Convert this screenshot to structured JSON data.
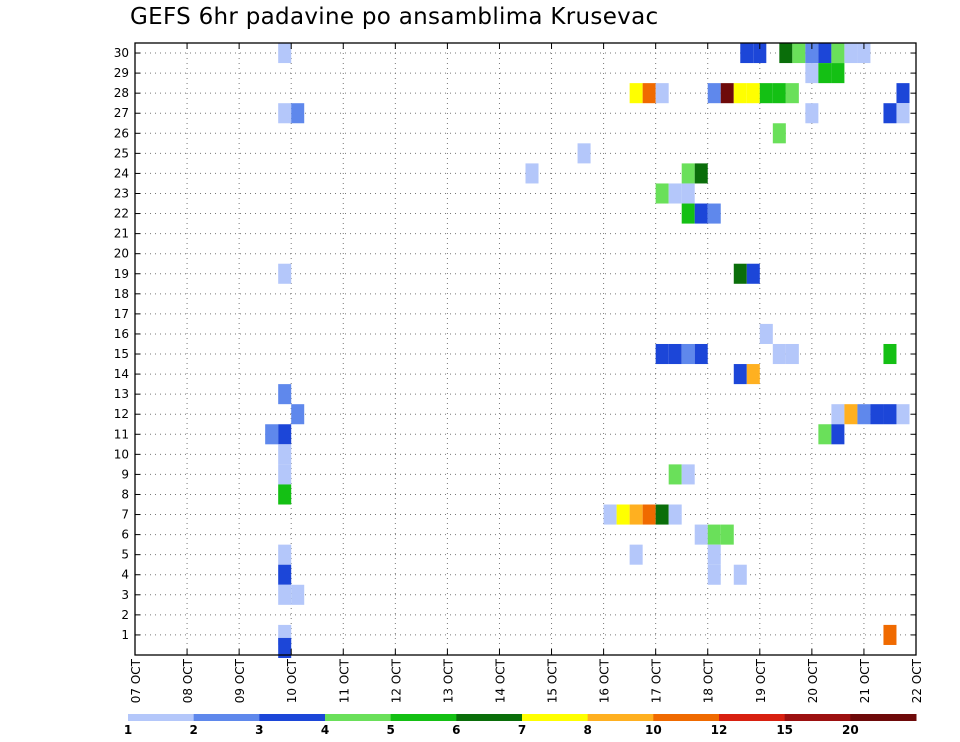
{
  "chart_data": {
    "type": "heatmap",
    "title": "GEFS 6hr padavine po ansamblima Krusevac",
    "xlabel": "",
    "ylabel": "",
    "x_tick_labels": [
      "07 OCT",
      "08 OCT",
      "09 OCT",
      "10 OCT",
      "11 OCT",
      "12 OCT",
      "13 OCT",
      "14 OCT",
      "15 OCT",
      "16 OCT",
      "17 OCT",
      "18 OCT",
      "19 OCT",
      "20 OCT",
      "21 OCT",
      "22 OCT"
    ],
    "y_tick_labels": [
      "1",
      "2",
      "3",
      "4",
      "5",
      "6",
      "7",
      "8",
      "9",
      "10",
      "11",
      "12",
      "13",
      "14",
      "15",
      "16",
      "17",
      "18",
      "19",
      "20",
      "21",
      "22",
      "23",
      "24",
      "25",
      "26",
      "27",
      "28",
      "29",
      "30"
    ],
    "xlim": [
      0,
      60
    ],
    "ylim": [
      0,
      30.5
    ],
    "grid": true,
    "time_step": "6hr",
    "colorbar": {
      "labels": [
        "1",
        "2",
        "3",
        "4",
        "5",
        "6",
        "7",
        "8",
        "10",
        "12",
        "15",
        "20"
      ],
      "colors": [
        "#b4c7fa",
        "#5f88ec",
        "#1c46d8",
        "#6ae05a",
        "#14c014",
        "#0a6e0a",
        "#ffff00",
        "#ffb020",
        "#f06a00",
        "#d82010",
        "#9c1010",
        "#6e0a0a"
      ]
    },
    "cells": [
      {
        "member": 30,
        "step": 11.5,
        "value": 1
      },
      {
        "member": 30,
        "step": 47,
        "value": 3
      },
      {
        "member": 30,
        "step": 48,
        "value": 3
      },
      {
        "member": 30,
        "step": 50,
        "value": 6
      },
      {
        "member": 30,
        "step": 51,
        "value": 4
      },
      {
        "member": 30,
        "step": 52,
        "value": 2
      },
      {
        "member": 30,
        "step": 53,
        "value": 3
      },
      {
        "member": 30,
        "step": 54,
        "value": 4
      },
      {
        "member": 30,
        "step": 55,
        "value": 1
      },
      {
        "member": 30,
        "step": 56,
        "value": 1
      },
      {
        "member": 29,
        "step": 52,
        "value": 1
      },
      {
        "member": 29,
        "step": 53,
        "value": 5
      },
      {
        "member": 29,
        "step": 54,
        "value": 5
      },
      {
        "member": 28,
        "step": 38.5,
        "value": 7
      },
      {
        "member": 28,
        "step": 39.5,
        "value": 10
      },
      {
        "member": 28,
        "step": 40.5,
        "value": 1
      },
      {
        "member": 28,
        "step": 44.5,
        "value": 2
      },
      {
        "member": 28,
        "step": 45.5,
        "value": 20
      },
      {
        "member": 28,
        "step": 46.5,
        "value": 7
      },
      {
        "member": 28,
        "step": 47.5,
        "value": 7
      },
      {
        "member": 28,
        "step": 48.5,
        "value": 5
      },
      {
        "member": 28,
        "step": 49.5,
        "value": 5
      },
      {
        "member": 28,
        "step": 50.5,
        "value": 4
      },
      {
        "member": 28,
        "step": 59,
        "value": 3
      },
      {
        "member": 27,
        "step": 11.5,
        "value": 1
      },
      {
        "member": 27,
        "step": 12.5,
        "value": 2
      },
      {
        "member": 27,
        "step": 52,
        "value": 1
      },
      {
        "member": 27,
        "step": 58,
        "value": 3
      },
      {
        "member": 27,
        "step": 59,
        "value": 1
      },
      {
        "member": 26,
        "step": 49.5,
        "value": 4
      },
      {
        "member": 25,
        "step": 34.5,
        "value": 1
      },
      {
        "member": 24,
        "step": 30.5,
        "value": 1
      },
      {
        "member": 24,
        "step": 42.5,
        "value": 4
      },
      {
        "member": 24,
        "step": 43.5,
        "value": 6
      },
      {
        "member": 23,
        "step": 40.5,
        "value": 4
      },
      {
        "member": 23,
        "step": 41.5,
        "value": 1
      },
      {
        "member": 23,
        "step": 42.5,
        "value": 1
      },
      {
        "member": 22,
        "step": 42.5,
        "value": 5
      },
      {
        "member": 22,
        "step": 43.5,
        "value": 3
      },
      {
        "member": 22,
        "step": 44.5,
        "value": 2
      },
      {
        "member": 19,
        "step": 11.5,
        "value": 1
      },
      {
        "member": 19,
        "step": 46.5,
        "value": 6
      },
      {
        "member": 19,
        "step": 47.5,
        "value": 3
      },
      {
        "member": 16,
        "step": 48.5,
        "value": 1
      },
      {
        "member": 15,
        "step": 40.5,
        "value": 3
      },
      {
        "member": 15,
        "step": 41.5,
        "value": 3
      },
      {
        "member": 15,
        "step": 42.5,
        "value": 2
      },
      {
        "member": 15,
        "step": 43.5,
        "value": 3
      },
      {
        "member": 15,
        "step": 49.5,
        "value": 1
      },
      {
        "member": 15,
        "step": 50.5,
        "value": 1
      },
      {
        "member": 15,
        "step": 58,
        "value": 5
      },
      {
        "member": 14,
        "step": 46.5,
        "value": 3
      },
      {
        "member": 14,
        "step": 47.5,
        "value": 8
      },
      {
        "member": 13,
        "step": 11.5,
        "value": 2
      },
      {
        "member": 12,
        "step": 12.5,
        "value": 2
      },
      {
        "member": 12,
        "step": 54,
        "value": 1
      },
      {
        "member": 12,
        "step": 55,
        "value": 8
      },
      {
        "member": 12,
        "step": 56,
        "value": 2
      },
      {
        "member": 12,
        "step": 57,
        "value": 3
      },
      {
        "member": 12,
        "step": 58,
        "value": 3
      },
      {
        "member": 12,
        "step": 59,
        "value": 1
      },
      {
        "member": 11,
        "step": 10.5,
        "value": 2
      },
      {
        "member": 11,
        "step": 11.5,
        "value": 3
      },
      {
        "member": 11,
        "step": 53,
        "value": 4
      },
      {
        "member": 11,
        "step": 54,
        "value": 3
      },
      {
        "member": 10,
        "step": 11.5,
        "value": 1
      },
      {
        "member": 9,
        "step": 11.5,
        "value": 1
      },
      {
        "member": 9,
        "step": 41.5,
        "value": 4
      },
      {
        "member": 9,
        "step": 42.5,
        "value": 1
      },
      {
        "member": 8,
        "step": 11.5,
        "value": 5
      },
      {
        "member": 7,
        "step": 36.5,
        "value": 1
      },
      {
        "member": 7,
        "step": 37.5,
        "value": 7
      },
      {
        "member": 7,
        "step": 38.5,
        "value": 8
      },
      {
        "member": 7,
        "step": 39.5,
        "value": 10
      },
      {
        "member": 7,
        "step": 40.5,
        "value": 6
      },
      {
        "member": 7,
        "step": 41.5,
        "value": 1
      },
      {
        "member": 6,
        "step": 43.5,
        "value": 1
      },
      {
        "member": 6,
        "step": 44.5,
        "value": 4
      },
      {
        "member": 6,
        "step": 45.5,
        "value": 4
      },
      {
        "member": 5,
        "step": 11.5,
        "value": 1
      },
      {
        "member": 5,
        "step": 38.5,
        "value": 1
      },
      {
        "member": 5,
        "step": 44.5,
        "value": 1
      },
      {
        "member": 4,
        "step": 11.5,
        "value": 3
      },
      {
        "member": 4,
        "step": 44.5,
        "value": 1
      },
      {
        "member": 4,
        "step": 46.5,
        "value": 1
      },
      {
        "member": 3,
        "step": 11.5,
        "value": 1
      },
      {
        "member": 3,
        "step": 12.5,
        "value": 1
      },
      {
        "member": 1,
        "step": 11.5,
        "value": 1
      },
      {
        "member": 1,
        "step": 58,
        "value": 10
      },
      {
        "member": 0.35,
        "step": 11.5,
        "value": 3
      }
    ]
  }
}
